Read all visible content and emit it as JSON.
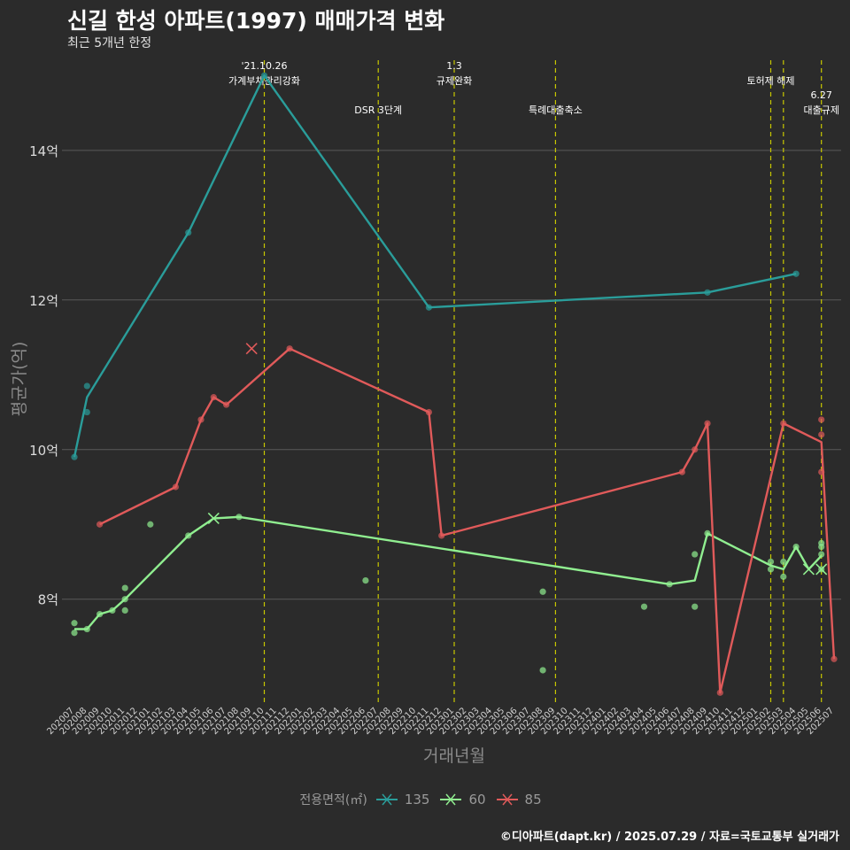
{
  "header": {
    "title": "신길 한성 아파트(1997) 매매가격 변화",
    "subtitle": "최근 5개년 한정"
  },
  "footer": {
    "caption": "©디아파트(dapt.kr) / 2025.07.29 / 자료=국토교통부 실거래가"
  },
  "legend": {
    "title": "전용면적(㎡)",
    "items": [
      {
        "label": "135",
        "color": "#2a9d9a"
      },
      {
        "label": "60",
        "color": "#90ee90"
      },
      {
        "label": "85",
        "color": "#e05a5a"
      }
    ]
  },
  "chart_data": {
    "type": "line",
    "title": "신길 한성 아파트(1997) 매매가격 변화",
    "subtitle": "최근 5개년 한정",
    "xlabel": "거래년월",
    "ylabel": "평균가(억)",
    "ylim": [
      6.6,
      15.3
    ],
    "yticks": [
      8,
      10,
      12,
      14
    ],
    "ytick_labels": [
      "8억",
      "10억",
      "12억",
      "14억"
    ],
    "grid": true,
    "legend_position": "bottom",
    "categories": [
      "202007",
      "202008",
      "202009",
      "202010",
      "202011",
      "202012",
      "202101",
      "202102",
      "202103",
      "202104",
      "202105",
      "202106",
      "202107",
      "202108",
      "202109",
      "202110",
      "202111",
      "202112",
      "202201",
      "202202",
      "202203",
      "202204",
      "202205",
      "202206",
      "202207",
      "202208",
      "202209",
      "202210",
      "202211",
      "202212",
      "202301",
      "202302",
      "202303",
      "202304",
      "202305",
      "202306",
      "202307",
      "202308",
      "202309",
      "202310",
      "202311",
      "202312",
      "202401",
      "202402",
      "202403",
      "202404",
      "202405",
      "202406",
      "202407",
      "202408",
      "202409",
      "202410",
      "202411",
      "202412",
      "202501",
      "202502",
      "202503",
      "202504",
      "202505",
      "202506",
      "202507"
    ],
    "series": [
      {
        "name": "135",
        "color": "#2a9d9a",
        "line": [
          [
            "202007",
            9.9
          ],
          [
            "202008",
            10.7
          ],
          [
            "202104",
            12.9
          ],
          [
            "202110",
            15.0
          ],
          [
            "202211",
            11.9
          ],
          [
            "202409",
            12.1
          ],
          [
            "202504",
            12.35
          ]
        ],
        "points": [
          [
            "202007",
            9.9
          ],
          [
            "202008",
            10.85
          ],
          [
            "202008",
            10.5
          ],
          [
            "202104",
            12.9
          ],
          [
            "202110",
            15.0
          ],
          [
            "202211",
            11.9
          ],
          [
            "202409",
            12.1
          ],
          [
            "202504",
            12.35
          ]
        ],
        "crosses": []
      },
      {
        "name": "60",
        "color": "#90ee90",
        "line": [
          [
            "202007",
            7.6
          ],
          [
            "202008",
            7.6
          ],
          [
            "202009",
            7.8
          ],
          [
            "202010",
            7.85
          ],
          [
            "202011",
            8.0
          ],
          [
            "202104",
            8.85
          ],
          [
            "202106",
            9.08
          ],
          [
            "202108",
            9.1
          ],
          [
            "202406",
            8.2
          ],
          [
            "202408",
            8.25
          ],
          [
            "202409",
            8.88
          ],
          [
            "202502",
            8.45
          ],
          [
            "202503",
            8.4
          ],
          [
            "202504",
            8.7
          ],
          [
            "202505",
            8.4
          ],
          [
            "202506",
            8.58
          ]
        ],
        "points": [
          [
            "202007",
            7.55
          ],
          [
            "202007",
            7.68
          ],
          [
            "202008",
            7.6
          ],
          [
            "202009",
            7.8
          ],
          [
            "202010",
            7.85
          ],
          [
            "202011",
            7.85
          ],
          [
            "202011",
            8.0
          ],
          [
            "202011",
            8.15
          ],
          [
            "202101",
            9.0
          ],
          [
            "202104",
            8.85
          ],
          [
            "202108",
            9.1
          ],
          [
            "202206",
            8.25
          ],
          [
            "202308",
            8.1
          ],
          [
            "202308",
            7.05
          ],
          [
            "202404",
            7.9
          ],
          [
            "202406",
            8.2
          ],
          [
            "202408",
            7.9
          ],
          [
            "202408",
            8.6
          ],
          [
            "202409",
            8.88
          ],
          [
            "202502",
            8.5
          ],
          [
            "202502",
            8.4
          ],
          [
            "202503",
            8.3
          ],
          [
            "202503",
            8.5
          ],
          [
            "202504",
            8.7
          ],
          [
            "202506",
            8.75
          ],
          [
            "202506",
            8.7
          ],
          [
            "202506",
            8.6
          ],
          [
            "202506",
            8.4
          ]
        ],
        "crosses": [
          [
            "202106",
            9.08
          ],
          [
            "202505",
            8.4
          ],
          [
            "202506",
            8.4
          ]
        ]
      },
      {
        "name": "85",
        "color": "#e05a5a",
        "line": [
          [
            "202009",
            9.0
          ],
          [
            "202103",
            9.5
          ],
          [
            "202105",
            10.4
          ],
          [
            "202106",
            10.7
          ],
          [
            "202107",
            10.6
          ],
          [
            "202112",
            11.35
          ],
          [
            "202211",
            10.5
          ],
          [
            "202212",
            8.85
          ],
          [
            "202407",
            9.7
          ],
          [
            "202408",
            10.0
          ],
          [
            "202409",
            10.35
          ],
          [
            "202410",
            6.75
          ],
          [
            "202503",
            10.35
          ],
          [
            "202506",
            10.1
          ],
          [
            "202507",
            7.2
          ]
        ],
        "points": [
          [
            "202009",
            9.0
          ],
          [
            "202103",
            9.5
          ],
          [
            "202105",
            10.4
          ],
          [
            "202106",
            10.7
          ],
          [
            "202107",
            10.6
          ],
          [
            "202112",
            11.35
          ],
          [
            "202211",
            10.5
          ],
          [
            "202212",
            8.85
          ],
          [
            "202407",
            9.7
          ],
          [
            "202408",
            10.0
          ],
          [
            "202409",
            10.35
          ],
          [
            "202410",
            6.75
          ],
          [
            "202503",
            10.35
          ],
          [
            "202506",
            10.4
          ],
          [
            "202506",
            10.2
          ],
          [
            "202506",
            9.7
          ],
          [
            "202507",
            7.2
          ]
        ],
        "crosses": [
          [
            "202109",
            11.35
          ]
        ]
      }
    ],
    "annotations": [
      {
        "x": "202110",
        "label": "'21.10.26\n가계부채관리강화",
        "level": 1
      },
      {
        "x": "202207",
        "label": "DSR 3단계",
        "level": 2
      },
      {
        "x": "202301",
        "label": "1.3\n규제완화",
        "level": 1
      },
      {
        "x": "202309",
        "label": "특례대출축소",
        "level": 2
      },
      {
        "x": "202502",
        "label": "토허제 해제",
        "level": 1
      },
      {
        "x": "202503",
        "label": "",
        "level": 1
      },
      {
        "x": "202506",
        "label": "6.27\n대출규제",
        "level": 2
      }
    ]
  }
}
